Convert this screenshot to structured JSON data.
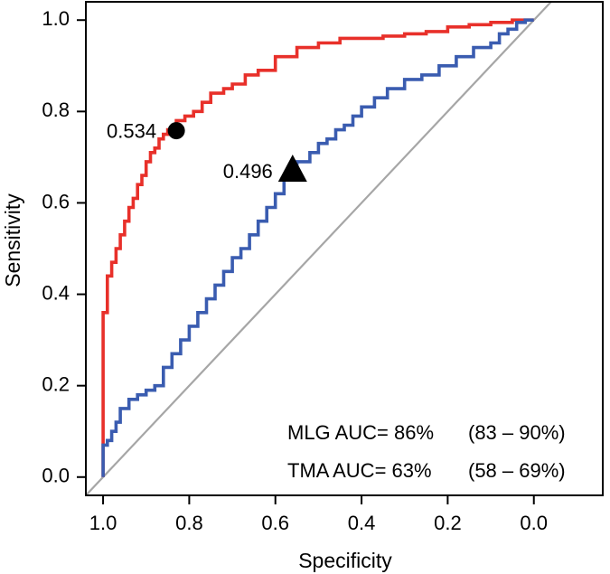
{
  "chart_data": {
    "type": "line",
    "xlabel": "Specificity",
    "ylabel": "Sensitivity",
    "xlim": [
      1.04,
      -0.16
    ],
    "ylim": [
      -0.04,
      1.04
    ],
    "x_ticks": [
      1.0,
      0.8,
      0.6,
      0.4,
      0.2,
      0.0
    ],
    "x_tick_labels": [
      "1.0",
      "0.8",
      "0.6",
      "0.4",
      "0.2",
      "0.0"
    ],
    "y_ticks": [
      0.0,
      0.2,
      0.4,
      0.6,
      0.8,
      1.0
    ],
    "y_tick_labels": [
      "0.0",
      "0.2",
      "0.4",
      "0.6",
      "0.8",
      "1.0"
    ],
    "grid": false,
    "diagonal_reference": true,
    "series": [
      {
        "name": "MLG",
        "color": "#e8302a",
        "specificity": [
          1.0,
          1.0,
          0.99,
          0.98,
          0.97,
          0.96,
          0.95,
          0.94,
          0.93,
          0.92,
          0.91,
          0.9,
          0.89,
          0.88,
          0.87,
          0.86,
          0.85,
          0.84,
          0.83,
          0.81,
          0.79,
          0.77,
          0.75,
          0.72,
          0.7,
          0.67,
          0.64,
          0.6,
          0.55,
          0.5,
          0.45,
          0.4,
          0.35,
          0.3,
          0.25,
          0.2,
          0.15,
          0.1,
          0.05,
          0.0
        ],
        "sensitivity": [
          0.0,
          0.24,
          0.36,
          0.44,
          0.47,
          0.5,
          0.53,
          0.56,
          0.59,
          0.61,
          0.64,
          0.66,
          0.69,
          0.71,
          0.72,
          0.74,
          0.75,
          0.76,
          0.76,
          0.78,
          0.79,
          0.8,
          0.82,
          0.84,
          0.85,
          0.86,
          0.88,
          0.89,
          0.92,
          0.94,
          0.95,
          0.96,
          0.96,
          0.965,
          0.97,
          0.975,
          0.985,
          0.99,
          0.995,
          1.0
        ]
      },
      {
        "name": "TMA",
        "color": "#3a5cb0",
        "specificity": [
          1.0,
          1.0,
          0.99,
          0.98,
          0.97,
          0.96,
          0.94,
          0.92,
          0.9,
          0.88,
          0.86,
          0.84,
          0.82,
          0.8,
          0.78,
          0.76,
          0.74,
          0.72,
          0.7,
          0.68,
          0.66,
          0.64,
          0.62,
          0.6,
          0.58,
          0.56,
          0.55,
          0.52,
          0.5,
          0.48,
          0.46,
          0.44,
          0.42,
          0.4,
          0.37,
          0.34,
          0.3,
          0.26,
          0.22,
          0.18,
          0.14,
          0.1,
          0.08,
          0.06,
          0.04,
          0.02,
          0.0
        ],
        "sensitivity": [
          0.0,
          0.05,
          0.07,
          0.08,
          0.1,
          0.12,
          0.15,
          0.17,
          0.18,
          0.19,
          0.2,
          0.24,
          0.27,
          0.3,
          0.33,
          0.36,
          0.39,
          0.42,
          0.45,
          0.48,
          0.5,
          0.53,
          0.56,
          0.59,
          0.62,
          0.65,
          0.67,
          0.69,
          0.71,
          0.73,
          0.74,
          0.76,
          0.77,
          0.79,
          0.81,
          0.83,
          0.85,
          0.87,
          0.88,
          0.9,
          0.92,
          0.94,
          0.95,
          0.97,
          0.98,
          0.995,
          1.0
        ]
      }
    ],
    "annotations": [
      {
        "label": "0.534",
        "specificity": 0.83,
        "sensitivity": 0.758,
        "marker": "circle",
        "series": "MLG"
      },
      {
        "label": "0.496",
        "specificity": 0.56,
        "sensitivity": 0.67,
        "marker": "triangle",
        "series": "TMA"
      }
    ],
    "legend": [
      {
        "label": "MLG AUC= 86%",
        "ci": "(83 – 90%)"
      },
      {
        "label": "TMA AUC= 63%",
        "ci": "(58 – 69%)"
      }
    ],
    "legend_position": "bottom-right"
  },
  "colors": {
    "axis": "#000000",
    "diagonal": "#a6a6a6",
    "marker": "#000000"
  }
}
